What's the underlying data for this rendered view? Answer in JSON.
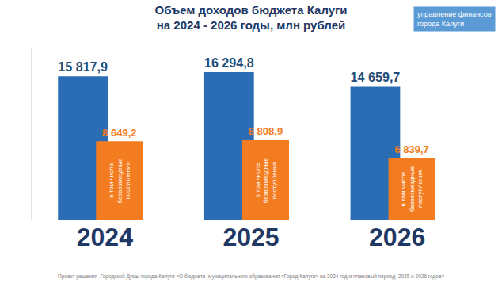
{
  "chart_data": {
    "type": "bar",
    "title": "Объем доходов бюджета Калуги\nна 2024 - 2026 годы, млн рублей",
    "logo_text": "управление финансов\nгорода Калуги",
    "footnote": "Проект решения  Городской Думы города Калуги «О бюджете  муниципального образования «Город Калуга» на 2024 год и плановый период  2025 и 2026 годов»",
    "categories": [
      "2024",
      "2025",
      "2026"
    ],
    "series": [
      {
        "name": null,
        "color": "#2a6db5",
        "values": [
          15817.9,
          16294.8,
          14659.7
        ],
        "value_labels": [
          "15 817,9",
          "16 294,8",
          "14 659,7"
        ]
      },
      {
        "name": "в том числе\nбезвозмездные\nпоступления",
        "color": "#f47c20",
        "values": [
          8649.2,
          8808.9,
          6839.7
        ],
        "value_labels": [
          "8 649,2",
          "8 808,9",
          "6 839,7"
        ]
      }
    ],
    "ylim": [
      0,
      19000
    ],
    "yticks": [],
    "grid": false,
    "data_labels": true,
    "tick_labels": "x"
  }
}
